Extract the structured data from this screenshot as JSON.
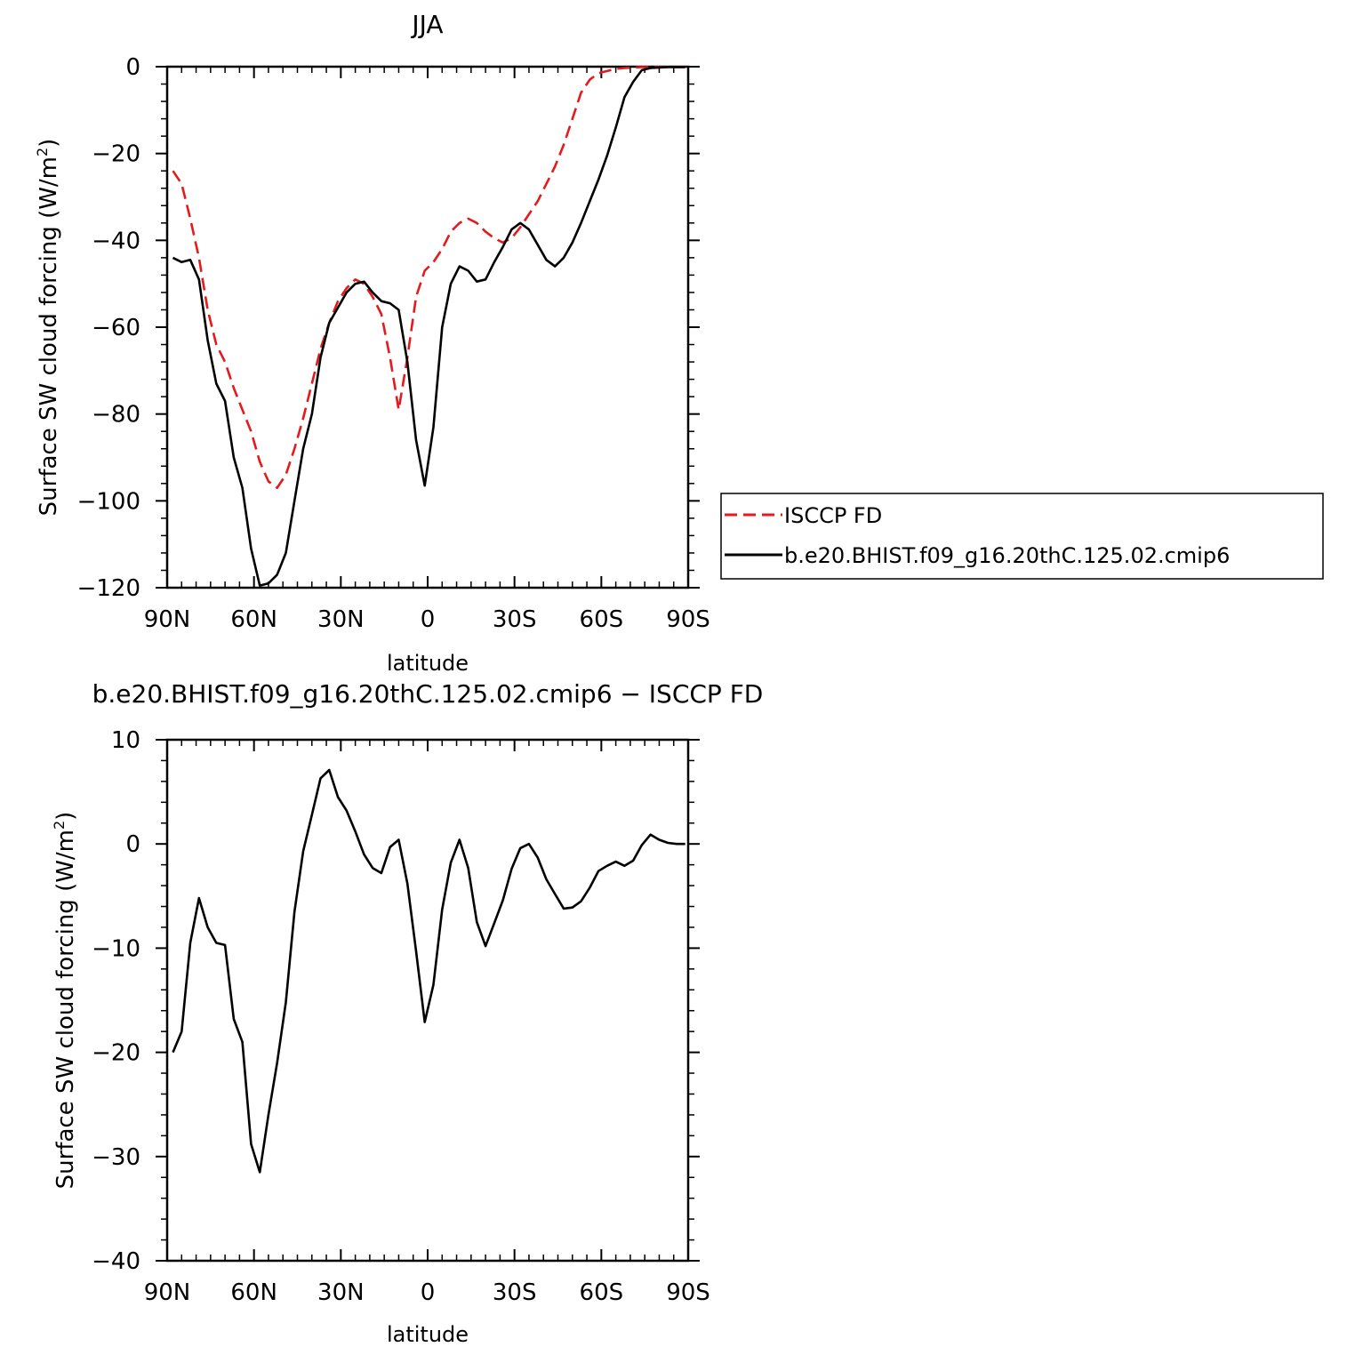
{
  "chart_data": [
    {
      "type": "line",
      "title": "JJA",
      "xlabel": "latitude",
      "ylabel": "Surface SW cloud forcing (W/m",
      "ylabel_superscript": "2",
      "ylabel_suffix": ")",
      "xlim": [
        90,
        -90
      ],
      "ylim": [
        -120,
        0
      ],
      "x_ticks": [
        90,
        60,
        30,
        0,
        -30,
        -60,
        -90
      ],
      "x_tick_labels": [
        "90N",
        "60N",
        "30N",
        "0",
        "30S",
        "60S",
        "90S"
      ],
      "y_ticks": [
        0,
        -20,
        -40,
        -60,
        -80,
        -100,
        -120
      ],
      "y_tick_labels": [
        "0",
        "−20",
        "−40",
        "−60",
        "−80",
        "−100",
        "−120"
      ],
      "grid": false,
      "legend_position": "right",
      "series": [
        {
          "name": "ISCCP FD",
          "color": "#e41a1c",
          "dash": "dashed",
          "x": [
            88,
            85,
            82,
            79,
            76,
            73,
            70,
            67,
            64,
            61,
            58,
            55,
            52,
            49,
            46,
            43,
            40,
            37,
            34,
            31,
            28,
            25,
            22,
            19,
            16,
            13,
            10,
            7,
            4,
            1,
            -2,
            -5,
            -8,
            -11,
            -14,
            -17,
            -20,
            -23,
            -26,
            -29,
            -32,
            -35,
            -38,
            -41,
            -44,
            -47,
            -50,
            -53,
            -56,
            -59,
            -62,
            -65,
            -68,
            -71,
            -74,
            -77,
            -80,
            -83,
            -86,
            -89
          ],
          "y": [
            -24,
            -27,
            -35,
            -44,
            -56,
            -64,
            -68,
            -74,
            -79,
            -84,
            -91,
            -95.5,
            -97,
            -94,
            -88,
            -81,
            -73,
            -65,
            -59,
            -54,
            -51,
            -49,
            -50,
            -53,
            -57,
            -67,
            -79,
            -67,
            -53,
            -47,
            -45,
            -42,
            -38,
            -36,
            -35,
            -36,
            -38,
            -39.5,
            -40.5,
            -39.5,
            -37,
            -34,
            -31,
            -27,
            -23,
            -18,
            -12,
            -6,
            -3,
            -1.5,
            -1,
            -0.5,
            -0.3,
            -0.2,
            -0.1,
            -0.1,
            -0.1,
            -0.1,
            -0.1,
            -0.1
          ]
        },
        {
          "name": "b.e20.BHIST.f09_g16.20thC.125.02.cmip6",
          "color": "#000000",
          "dash": "solid",
          "x": [
            88,
            85,
            82,
            79,
            76,
            73,
            70,
            67,
            64,
            61,
            58,
            55,
            52,
            49,
            46,
            43,
            40,
            37,
            34,
            31,
            28,
            25,
            22,
            19,
            16,
            13,
            10,
            7,
            4,
            1,
            -2,
            -5,
            -8,
            -11,
            -14,
            -17,
            -20,
            -23,
            -26,
            -29,
            -32,
            -35,
            -38,
            -41,
            -44,
            -47,
            -50,
            -53,
            -56,
            -59,
            -62,
            -65,
            -68,
            -71,
            -74,
            -77,
            -80,
            -83,
            -86,
            -89
          ],
          "y": [
            -44,
            -45,
            -44.5,
            -49,
            -63,
            -73,
            -77,
            -90,
            -97,
            -111,
            -119.5,
            -119,
            -117,
            -112,
            -100,
            -88,
            -80,
            -67,
            -59,
            -55.5,
            -52,
            -50,
            -49.5,
            -52,
            -54,
            -54.5,
            -56,
            -68,
            -86,
            -96.5,
            -83,
            -60,
            -50,
            -46,
            -47,
            -49.5,
            -49,
            -45,
            -41.5,
            -37.5,
            -36,
            -37.5,
            -41,
            -44.5,
            -46,
            -44,
            -40.5,
            -36,
            -31,
            -26,
            -20.5,
            -14,
            -7,
            -3.5,
            -0.8,
            -0.3,
            -0.2,
            -0.1,
            -0.1,
            -0.1
          ]
        }
      ]
    },
    {
      "type": "line",
      "title": "b.e20.BHIST.f09_g16.20thC.125.02.cmip6 − ISCCP FD",
      "xlabel": "latitude",
      "ylabel": "Surface SW cloud forcing (W/m",
      "ylabel_superscript": "2",
      "ylabel_suffix": ")",
      "xlim": [
        90,
        -90
      ],
      "ylim": [
        -40,
        10
      ],
      "x_ticks": [
        90,
        60,
        30,
        0,
        -30,
        -60,
        -90
      ],
      "x_tick_labels": [
        "90N",
        "60N",
        "30N",
        "0",
        "30S",
        "60S",
        "90S"
      ],
      "y_ticks": [
        10,
        0,
        -10,
        -20,
        -30,
        -40
      ],
      "y_tick_labels": [
        "10",
        "0",
        "−10",
        "−20",
        "−30",
        "−40"
      ],
      "grid": false,
      "series": [
        {
          "color": "#000000",
          "dash": "solid",
          "x": [
            88,
            85,
            82,
            79,
            76,
            73,
            70,
            67,
            64,
            61,
            58,
            55,
            52,
            49,
            46,
            43,
            40,
            37,
            34,
            31,
            28,
            25,
            22,
            19,
            16,
            13,
            10,
            7,
            4,
            1,
            -2,
            -5,
            -8,
            -11,
            -14,
            -17,
            -20,
            -23,
            -26,
            -29,
            -32,
            -35,
            -38,
            -41,
            -44,
            -47,
            -50,
            -53,
            -56,
            -59,
            -62,
            -65,
            -68,
            -71,
            -74,
            -77,
            -80,
            -83,
            -86,
            -89
          ],
          "y": [
            -20,
            -18,
            -9.5,
            -5.2,
            -8,
            -9.5,
            -9.7,
            -16.8,
            -19,
            -28.8,
            -31.5,
            -26,
            -21,
            -15.2,
            -6.5,
            -0.7,
            2.8,
            6.3,
            7.1,
            4.5,
            3.2,
            1.2,
            -1,
            -2.3,
            -2.8,
            -0.3,
            0.4,
            -3.8,
            -10.3,
            -17.1,
            -13.5,
            -6.3,
            -1.8,
            0.4,
            -2.3,
            -7.5,
            -9.8,
            -7.6,
            -5.4,
            -2.4,
            -0.4,
            0,
            -1.3,
            -3.4,
            -4.8,
            -6.2,
            -6.1,
            -5.5,
            -4.2,
            -2.6,
            -2.1,
            -1.7,
            -2.1,
            -1.6,
            -0.1,
            0.9,
            0.4,
            0.1,
            0,
            0
          ]
        }
      ]
    }
  ]
}
